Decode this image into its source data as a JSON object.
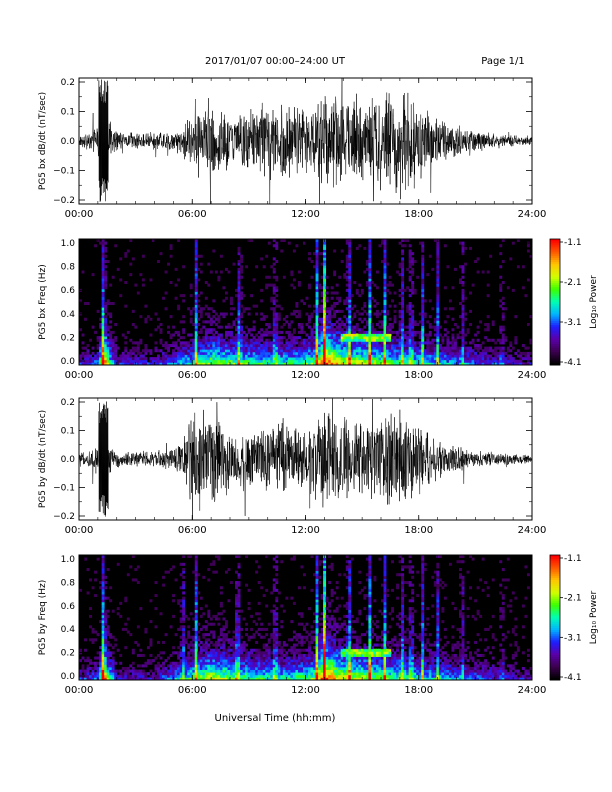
{
  "header": {
    "title": "2017/01/07  00:00–24:00 UT",
    "page": "Page 1/1"
  },
  "xaxis": {
    "label": "Universal Time (hh:mm)",
    "ticks": [
      "00:00",
      "06:00",
      "12:00",
      "18:00",
      "24:00"
    ],
    "range_hours": [
      0,
      24
    ]
  },
  "colors": {
    "trace": "#000000",
    "spectrogram_background": "#000000",
    "colormap": [
      "#000000",
      "#3c0050",
      "#5a00aa",
      "#1e1eff",
      "#00b4ff",
      "#00ffb4",
      "#3cff00",
      "#d2ff00",
      "#ffc800",
      "#ff5a00",
      "#ff0000"
    ]
  },
  "chart_data": [
    {
      "type": "line",
      "panel": "bx-waveform",
      "ylabel": "PG5 bx dB/dt (nT/sec)",
      "ylim": [
        -0.2,
        0.2
      ],
      "yticks": [
        "0.2",
        "0.1",
        "0.0",
        "−0.1",
        "−0.2"
      ],
      "series": [
        {
          "x_hours": [
            0,
            0.5,
            1.0,
            1.3,
            1.5,
            2,
            3,
            4,
            5,
            5.5,
            6,
            7,
            8,
            9,
            10,
            11,
            12,
            12.5,
            13,
            14,
            15,
            16,
            17,
            17.5,
            18,
            19,
            20,
            21,
            22,
            23,
            24
          ],
          "envelope": [
            0.02,
            0.03,
            0.06,
            0.2,
            0.08,
            0.04,
            0.03,
            0.03,
            0.04,
            0.06,
            0.1,
            0.13,
            0.1,
            0.13,
            0.14,
            0.15,
            0.12,
            0.15,
            0.2,
            0.16,
            0.14,
            0.18,
            0.2,
            0.2,
            0.15,
            0.09,
            0.06,
            0.04,
            0.03,
            0.02,
            0.015
          ]
        }
      ]
    },
    {
      "type": "heatmap",
      "panel": "bx-spectrogram",
      "ylabel": "PG5 bx Freq (Hz)",
      "ylim": [
        0,
        1.0
      ],
      "yticks": [
        "1.0",
        "0.8",
        "0.6",
        "0.4",
        "0.2",
        "0.0"
      ],
      "colorbar": {
        "label": "Log₁₀ Power",
        "range": [
          -4.1,
          -1.1
        ],
        "ticks": [
          "-1.1",
          "-2.1",
          "-3.1",
          "-4.1"
        ]
      },
      "features": {
        "activity_hours": [
          0,
          1,
          1.3,
          2,
          4,
          6,
          7,
          9,
          11,
          12.5,
          13,
          14,
          15.5,
          16,
          18,
          20,
          22,
          24
        ],
        "activity_level": [
          0.25,
          0.35,
          0.85,
          0.25,
          0.25,
          0.5,
          0.65,
          0.55,
          0.5,
          0.6,
          0.95,
          0.7,
          0.65,
          0.6,
          0.5,
          0.4,
          0.3,
          0.2
        ],
        "vertical_streaks_hours": [
          1.3,
          6.2,
          8.5,
          10.4,
          12.6,
          13.0,
          14.3,
          15.4,
          16.2,
          17.1,
          17.6,
          18.2,
          19.0,
          20.3,
          22.4
        ],
        "pc1_band_hours": [
          13.8,
          16.6
        ],
        "pc1_band_freq_hz": [
          0.18,
          0.26
        ]
      }
    },
    {
      "type": "line",
      "panel": "by-waveform",
      "ylabel": "PG5 by dB/dt (nT/sec)",
      "ylim": [
        -0.2,
        0.2
      ],
      "yticks": [
        "0.2",
        "0.1",
        "0.0",
        "−0.1",
        "−0.2"
      ],
      "series": [
        {
          "x_hours": [
            0,
            0.5,
            1.0,
            1.3,
            1.5,
            2,
            3,
            4,
            5,
            5.5,
            6,
            7,
            8,
            9,
            10,
            11,
            12,
            12.5,
            13,
            14,
            15,
            16,
            17,
            17.5,
            18,
            19,
            20,
            21,
            22,
            23,
            24
          ],
          "envelope": [
            0.02,
            0.03,
            0.06,
            0.15,
            0.07,
            0.03,
            0.03,
            0.03,
            0.04,
            0.08,
            0.2,
            0.2,
            0.12,
            0.12,
            0.13,
            0.15,
            0.11,
            0.15,
            0.2,
            0.15,
            0.14,
            0.17,
            0.2,
            0.18,
            0.13,
            0.08,
            0.05,
            0.03,
            0.025,
            0.02,
            0.015
          ]
        }
      ]
    },
    {
      "type": "heatmap",
      "panel": "by-spectrogram",
      "ylabel": "PG5 by Freq (Hz)",
      "ylim": [
        0,
        1.0
      ],
      "yticks": [
        "1.0",
        "0.8",
        "0.6",
        "0.4",
        "0.2",
        "0.0"
      ],
      "colorbar": {
        "label": "Log₁₀ Power",
        "range": [
          -4.1,
          -1.1
        ],
        "ticks": [
          "-1.1",
          "-2.1",
          "-3.1",
          "-4.1"
        ]
      },
      "features": {
        "activity_hours": [
          0,
          1,
          1.3,
          2,
          4,
          6,
          7,
          9,
          11,
          12.5,
          13,
          14,
          15.5,
          16,
          18,
          20,
          22,
          24
        ],
        "activity_level": [
          0.25,
          0.35,
          0.85,
          0.25,
          0.25,
          0.55,
          0.7,
          0.55,
          0.5,
          0.6,
          0.95,
          0.7,
          0.65,
          0.6,
          0.5,
          0.4,
          0.3,
          0.2
        ],
        "vertical_streaks_hours": [
          1.3,
          5.5,
          6.2,
          8.4,
          10.4,
          12.6,
          13.0,
          14.3,
          15.4,
          16.2,
          17.1,
          17.6,
          18.2,
          19.0,
          20.3,
          22.4
        ],
        "pc1_band_hours": [
          13.8,
          16.6
        ],
        "pc1_band_freq_hz": [
          0.18,
          0.26
        ]
      }
    }
  ]
}
